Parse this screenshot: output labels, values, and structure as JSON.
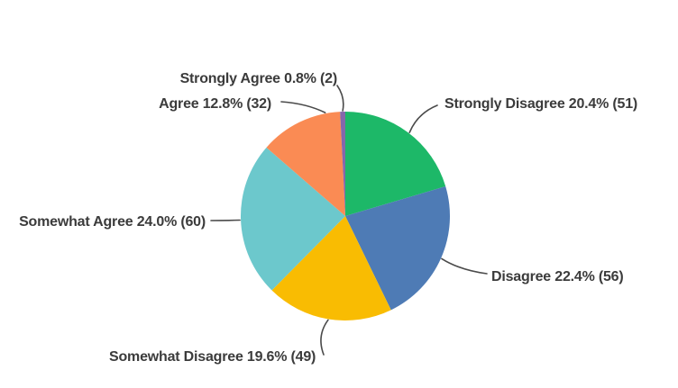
{
  "page": {
    "background_color": "#ffffff",
    "text_color": "#3b3b3b",
    "leader_line_color": "#4a4a4a"
  },
  "chart_data": {
    "type": "pie",
    "direction": "clockwise",
    "start_angle_deg": 0,
    "legend": "none",
    "slices": [
      {
        "key": "strongly-disagree",
        "label": "Strongly Disagree",
        "percent": 20.4,
        "count": 51,
        "color": "#1DB868",
        "display": "Strongly Disagree 20.4% (51)"
      },
      {
        "key": "disagree",
        "label": "Disagree",
        "percent": 22.4,
        "count": 56,
        "color": "#4E7BB5",
        "display": "Disagree 22.4% (56)"
      },
      {
        "key": "somewhat-disagree",
        "label": "Somewhat Disagree",
        "percent": 19.6,
        "count": 49,
        "color": "#F9BC02",
        "display": "Somewhat Disagree 19.6% (49)"
      },
      {
        "key": "somewhat-agree",
        "label": "Somewhat Agree",
        "percent": 24.0,
        "count": 60,
        "color": "#6CC8CC",
        "display": "Somewhat Agree 24.0% (60)"
      },
      {
        "key": "agree",
        "label": "Agree",
        "percent": 12.8,
        "count": 32,
        "color": "#FA8B54",
        "display": "Agree 12.8% (32)"
      },
      {
        "key": "strongly-agree",
        "label": "Strongly Agree",
        "percent": 0.8,
        "count": 2,
        "color": "#8567AB",
        "display": "Strongly Agree 0.8% (2)"
      }
    ]
  }
}
